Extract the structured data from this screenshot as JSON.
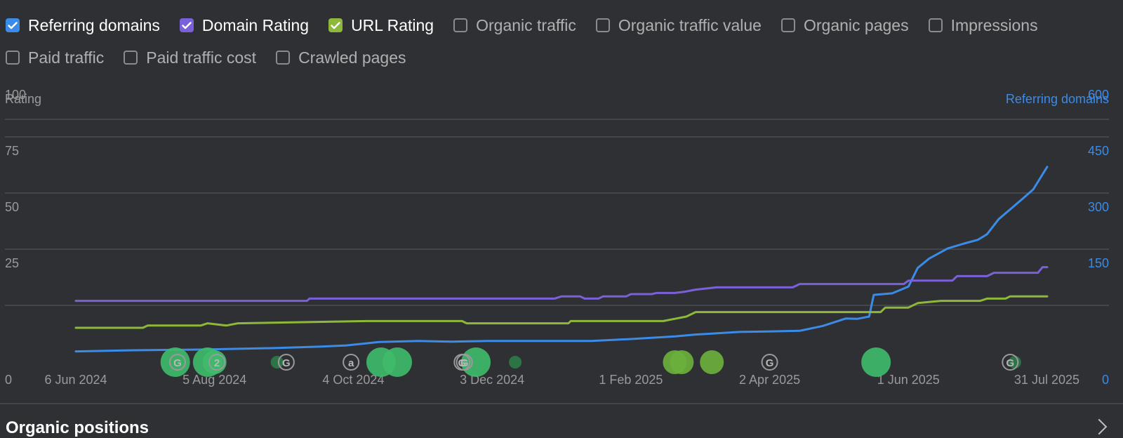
{
  "legend": [
    {
      "label": "Referring domains",
      "checked": true,
      "color": "#3b8be8"
    },
    {
      "label": "Domain Rating",
      "checked": true,
      "color": "#7b61d9"
    },
    {
      "label": "URL Rating",
      "checked": true,
      "color": "#8db83a"
    },
    {
      "label": "Organic traffic",
      "checked": false
    },
    {
      "label": "Organic traffic value",
      "checked": false
    },
    {
      "label": "Organic pages",
      "checked": false
    },
    {
      "label": "Impressions",
      "checked": false
    },
    {
      "label": "Paid traffic",
      "checked": false
    },
    {
      "label": "Paid traffic cost",
      "checked": false
    },
    {
      "label": "Crawled pages",
      "checked": false
    }
  ],
  "chart_data": {
    "type": "line",
    "left_axis_title": "Rating",
    "right_axis_title": "Referring domains",
    "left_axis": {
      "min": 0,
      "max": 100,
      "ticks": [
        "0",
        "25",
        "50",
        "75",
        "100"
      ]
    },
    "right_axis": {
      "min": 0,
      "max": 600,
      "ticks": [
        "0",
        "150",
        "300",
        "450",
        "600"
      ]
    },
    "x_axis": {
      "start": "2024-06-06",
      "end": "2025-07-31",
      "ticks": [
        {
          "date": "2024-06-06",
          "label": "6 Jun 2024"
        },
        {
          "date": "2024-08-05",
          "label": "5 Aug 2024"
        },
        {
          "date": "2024-10-04",
          "label": "4 Oct 2024"
        },
        {
          "date": "2024-12-03",
          "label": "3 Dec 2024"
        },
        {
          "date": "2025-02-01",
          "label": "1 Feb 2025"
        },
        {
          "date": "2025-04-02",
          "label": "2 Apr 2025"
        },
        {
          "date": "2025-06-01",
          "label": "1 Jun 2025"
        },
        {
          "date": "2025-07-31",
          "label": "31 Jul 2025"
        }
      ]
    },
    "grid": true,
    "colors": {
      "grid": "#45464a",
      "axis_text": "#9a9a9d",
      "right_axis_text": "#3b8be8"
    },
    "series": [
      {
        "name": "Referring domains",
        "axis": "right",
        "color": "#3b8be8",
        "points": [
          [
            "2024-06-06",
            27
          ],
          [
            "2024-07-01",
            30
          ],
          [
            "2024-08-01",
            32
          ],
          [
            "2024-09-01",
            36
          ],
          [
            "2024-09-20",
            40
          ],
          [
            "2024-10-01",
            43
          ],
          [
            "2024-10-15",
            52
          ],
          [
            "2024-11-01",
            55
          ],
          [
            "2024-11-15",
            53
          ],
          [
            "2024-12-01",
            55
          ],
          [
            "2025-01-01",
            55
          ],
          [
            "2025-01-15",
            55
          ],
          [
            "2025-02-01",
            60
          ],
          [
            "2025-02-20",
            67
          ],
          [
            "2025-03-01",
            72
          ],
          [
            "2025-03-20",
            79
          ],
          [
            "2025-04-01",
            80
          ],
          [
            "2025-04-15",
            82
          ],
          [
            "2025-04-25",
            95
          ],
          [
            "2025-05-05",
            115
          ],
          [
            "2025-05-10",
            114
          ],
          [
            "2025-05-15",
            120
          ],
          [
            "2025-05-17",
            178
          ],
          [
            "2025-05-25",
            182
          ],
          [
            "2025-06-01",
            200
          ],
          [
            "2025-06-05",
            250
          ],
          [
            "2025-06-10",
            275
          ],
          [
            "2025-06-18",
            302
          ],
          [
            "2025-06-25",
            315
          ],
          [
            "2025-07-01",
            325
          ],
          [
            "2025-07-05",
            340
          ],
          [
            "2025-07-10",
            380
          ],
          [
            "2025-07-20",
            433
          ],
          [
            "2025-07-25",
            460
          ],
          [
            "2025-07-31",
            520
          ]
        ]
      },
      {
        "name": "Domain Rating",
        "axis": "left",
        "color": "#7b61d9",
        "points": [
          [
            "2024-06-06",
            27
          ],
          [
            "2024-09-14",
            27
          ],
          [
            "2024-09-15",
            28
          ],
          [
            "2024-12-30",
            28
          ],
          [
            "2025-01-02",
            29
          ],
          [
            "2025-01-10",
            29
          ],
          [
            "2025-01-12",
            28
          ],
          [
            "2025-01-18",
            28
          ],
          [
            "2025-01-20",
            29
          ],
          [
            "2025-01-30",
            29
          ],
          [
            "2025-02-01",
            30
          ],
          [
            "2025-02-10",
            30
          ],
          [
            "2025-02-12",
            30.5
          ],
          [
            "2025-02-20",
            30.5
          ],
          [
            "2025-02-24",
            31
          ],
          [
            "2025-03-01",
            32
          ],
          [
            "2025-03-10",
            33
          ],
          [
            "2025-04-12",
            33
          ],
          [
            "2025-04-15",
            34.5
          ],
          [
            "2025-05-30",
            34.5
          ],
          [
            "2025-06-01",
            36
          ],
          [
            "2025-06-20",
            36
          ],
          [
            "2025-06-22",
            38
          ],
          [
            "2025-07-05",
            38
          ],
          [
            "2025-07-08",
            39.5
          ],
          [
            "2025-07-27",
            39.5
          ],
          [
            "2025-07-29",
            42
          ],
          [
            "2025-07-31",
            42
          ]
        ]
      },
      {
        "name": "URL Rating",
        "axis": "left",
        "color": "#8db83a",
        "points": [
          [
            "2024-06-06",
            15
          ],
          [
            "2024-07-05",
            15
          ],
          [
            "2024-07-07",
            16
          ],
          [
            "2024-07-30",
            16
          ],
          [
            "2024-08-02",
            17
          ],
          [
            "2024-08-10",
            16
          ],
          [
            "2024-08-15",
            17
          ],
          [
            "2024-10-10",
            18
          ],
          [
            "2024-11-20",
            18
          ],
          [
            "2024-11-22",
            17
          ],
          [
            "2025-01-05",
            17
          ],
          [
            "2025-01-06",
            18
          ],
          [
            "2025-02-15",
            18
          ],
          [
            "2025-02-20",
            19
          ],
          [
            "2025-02-25",
            20
          ],
          [
            "2025-03-01",
            22
          ],
          [
            "2025-04-18",
            22
          ],
          [
            "2025-04-25",
            22
          ],
          [
            "2025-05-20",
            22
          ],
          [
            "2025-05-22",
            24
          ],
          [
            "2025-06-01",
            24
          ],
          [
            "2025-06-05",
            26
          ],
          [
            "2025-06-15",
            27
          ],
          [
            "2025-07-02",
            27
          ],
          [
            "2025-07-05",
            28
          ],
          [
            "2025-07-13",
            28
          ],
          [
            "2025-07-15",
            29
          ],
          [
            "2025-07-31",
            29
          ]
        ]
      }
    ],
    "annotations": [
      {
        "date": "2024-07-20",
        "kind": "google",
        "label": "G"
      },
      {
        "date": "2024-09-05",
        "kind": "google",
        "label": "G"
      },
      {
        "date": "2024-11-20",
        "kind": "google",
        "label": "G"
      },
      {
        "date": "2024-11-21",
        "kind": "google",
        "label": "G"
      },
      {
        "date": "2025-04-02",
        "kind": "google",
        "label": "G"
      },
      {
        "date": "2025-07-15",
        "kind": "google",
        "label": "G"
      },
      {
        "date": "2024-10-03",
        "kind": "at",
        "label": "a"
      },
      {
        "date": "2024-08-06",
        "kind": "count",
        "label": "2"
      }
    ],
    "events": [
      {
        "date": "2024-07-19",
        "size": "large",
        "color": "#3fba6a"
      },
      {
        "date": "2024-08-02",
        "size": "large",
        "color": "#3fba6a"
      },
      {
        "date": "2024-08-05",
        "size": "medium",
        "color": "#3fba6a"
      },
      {
        "date": "2024-09-01",
        "size": "small",
        "color": "#2f7a46"
      },
      {
        "date": "2024-10-16",
        "size": "large",
        "color": "#3fba6a"
      },
      {
        "date": "2024-10-23",
        "size": "large",
        "color": "#3fba6a"
      },
      {
        "date": "2024-11-26",
        "size": "large",
        "color": "#3fba6a"
      },
      {
        "date": "2024-12-13",
        "size": "small",
        "color": "#2f7a46"
      },
      {
        "date": "2025-02-20",
        "size": "medium",
        "color": "#6ab03c"
      },
      {
        "date": "2025-02-23",
        "size": "medium",
        "color": "#6ab03c"
      },
      {
        "date": "2025-03-08",
        "size": "medium",
        "color": "#6ab03c"
      },
      {
        "date": "2025-05-18",
        "size": "large",
        "color": "#3fba6a"
      },
      {
        "date": "2025-07-17",
        "size": "small",
        "color": "#2f7a46"
      }
    ]
  },
  "section": {
    "title": "Organic positions"
  }
}
